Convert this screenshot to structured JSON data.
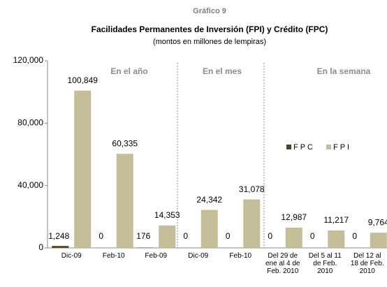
{
  "chart_data": {
    "type": "bar",
    "title": "Gráfico 9",
    "subtitle": "Facilidades Permanentes de Inversión (FPI) y Crédito (FPC)",
    "note": "(montos en millones de lempiras)",
    "annotations": [
      "En el año",
      "En el mes",
      "En la semana"
    ],
    "categories": [
      "Dic-09",
      "Feb-10",
      "Feb-09",
      "Dic-09",
      "Feb-10",
      "Del 29 de\nene al 4 de\nFeb. 2010",
      "Del 5 al 11\nde Feb.\n2010",
      "Del 12 al\n18 de Feb.\n2010"
    ],
    "series": [
      {
        "name": "FPC",
        "color": "#4a4529",
        "values": [
          1248,
          0,
          176,
          0,
          0,
          0,
          0,
          0
        ],
        "value_labels": [
          "1,248",
          "0",
          "176",
          "0",
          "0",
          "0",
          "0",
          "0"
        ]
      },
      {
        "name": "FPI",
        "color": "#c4bd97",
        "values": [
          100849,
          60335,
          14353,
          24342,
          31078,
          12987,
          11217,
          9764
        ],
        "value_labels": [
          "100,849",
          "60,335",
          "14,353",
          "24,342",
          "31,078",
          "12,987",
          "11,217",
          "9,764"
        ]
      }
    ],
    "ylim": [
      0,
      120000
    ],
    "yticks": [
      0,
      {
        "value": 40000,
        "label": "40,000"
      },
      {
        "value": 80000,
        "label": "80,000"
      },
      {
        "value": 120000,
        "label": "120,000"
      }
    ],
    "legend": "right"
  }
}
